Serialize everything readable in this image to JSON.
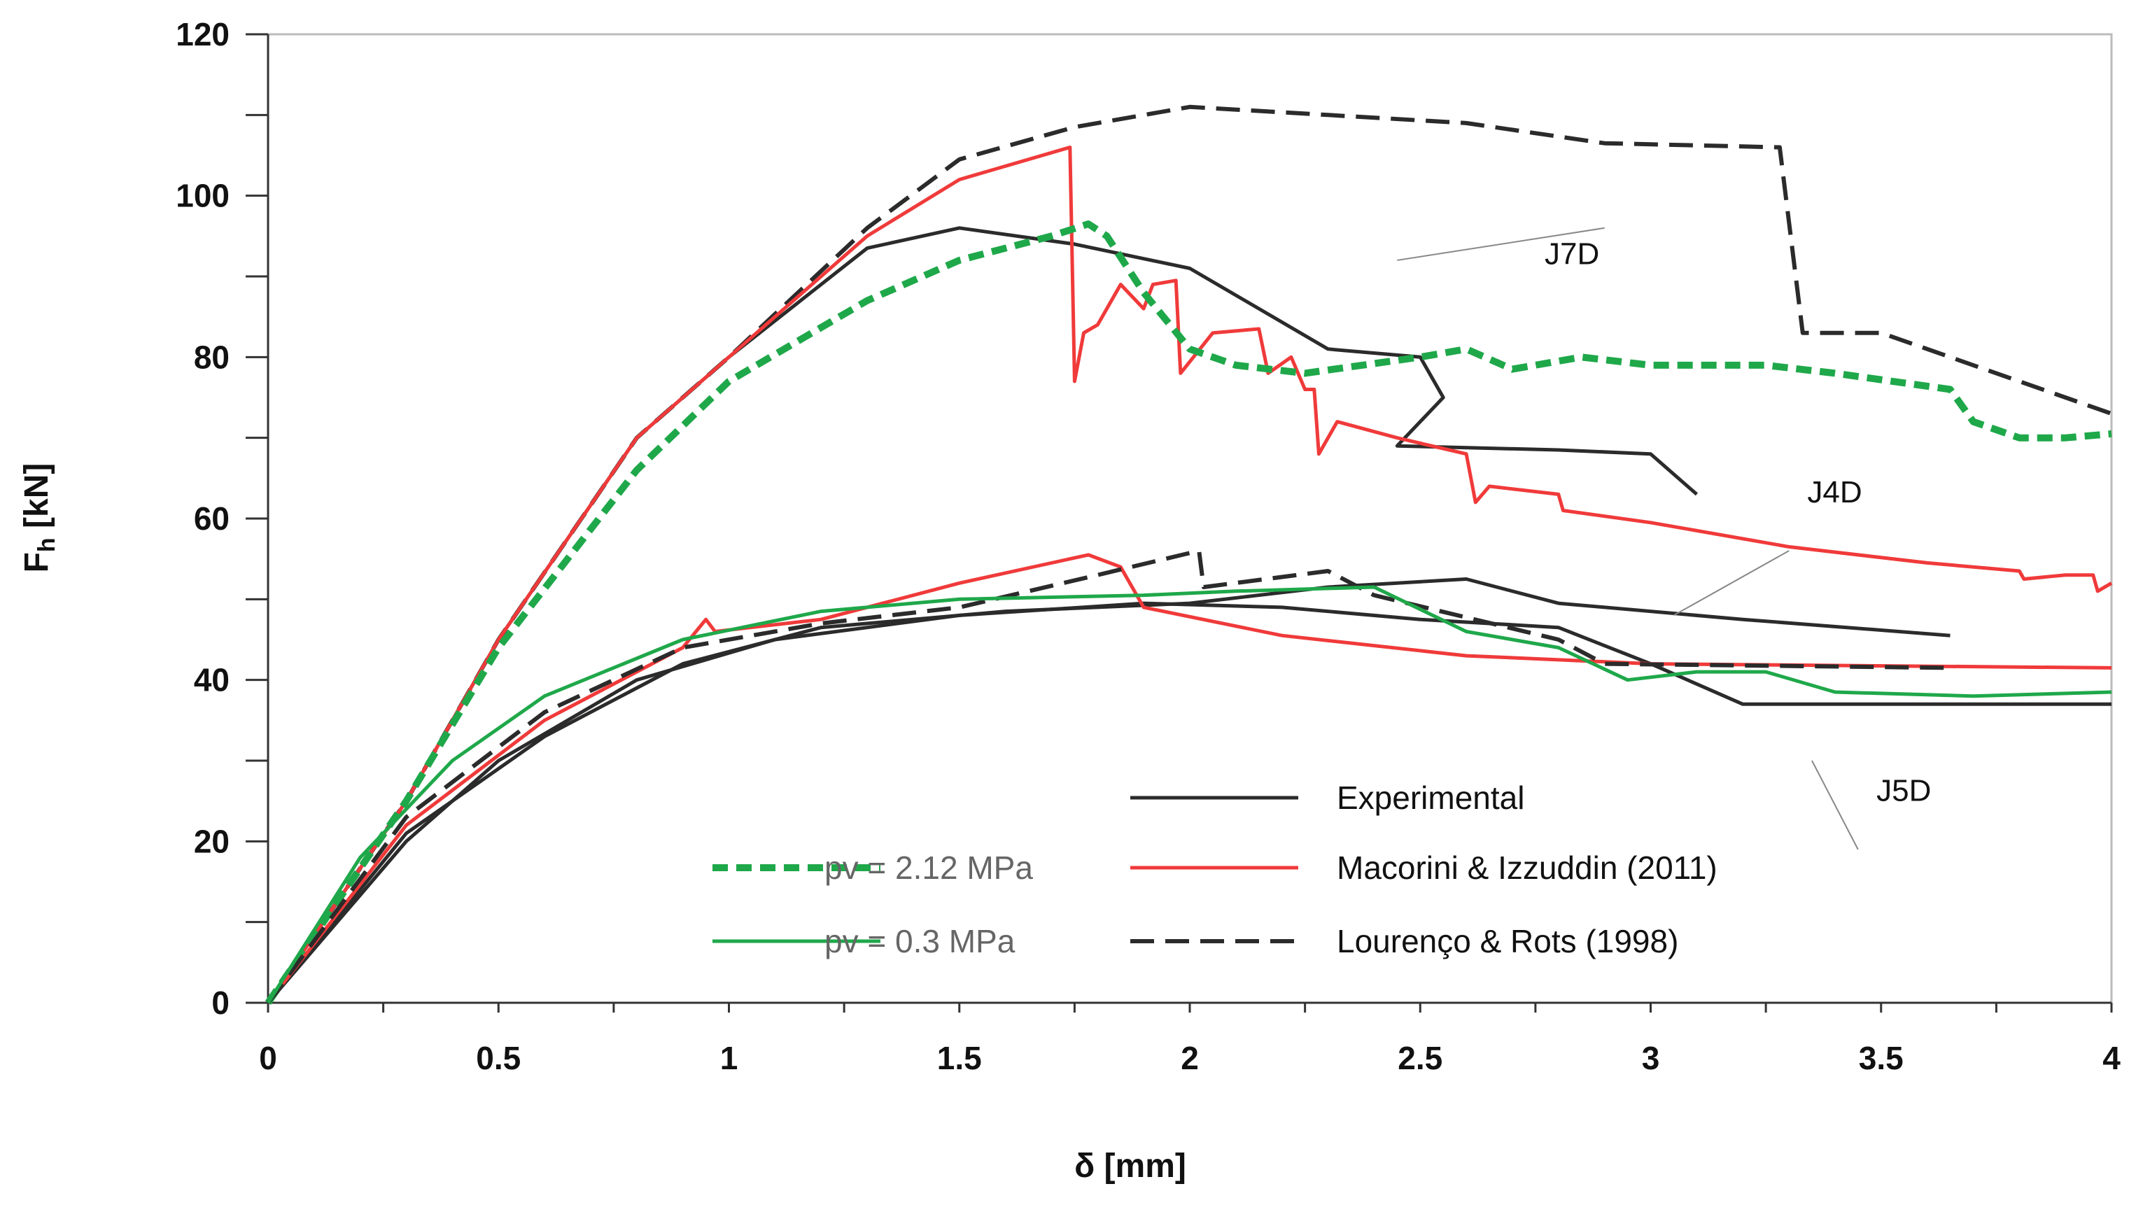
{
  "chart_data": {
    "type": "line",
    "xlabel": "δ [mm]",
    "ylabel_main": "F",
    "ylabel_sub": "h",
    "ylabel_unit": " [kN]",
    "xlim": [
      0,
      4
    ],
    "ylim": [
      0,
      120
    ],
    "xticks": [
      "0",
      "0.5",
      "1",
      "1.5",
      "2",
      "2.5",
      "3",
      "3.5",
      "4"
    ],
    "xtick_values": [
      0,
      0.5,
      1,
      1.5,
      2,
      2.5,
      3,
      3.5,
      4
    ],
    "yticks": [
      "0",
      "20",
      "40",
      "60",
      "80",
      "100",
      "120"
    ],
    "ytick_values": [
      0,
      20,
      40,
      60,
      80,
      100,
      120
    ],
    "grid": false,
    "annotations": [
      {
        "text": "J7D",
        "at": [
          2.45,
          92
        ],
        "pos": [
          2.4,
          92
        ]
      },
      {
        "text": "J4D",
        "at": [
          3.05,
          48
        ],
        "pos": [
          3.3,
          62
        ]
      },
      {
        "text": "J5D",
        "at": [
          3.35,
          30
        ],
        "pos": [
          3.45,
          25
        ]
      }
    ],
    "legend": {
      "placement": "bottom-center",
      "entries": [
        {
          "label": "Experimental",
          "style": "solid",
          "color": "#2b2b2b"
        },
        {
          "label": "Macorini & Izzuddin (2011)",
          "style": "solid",
          "color": "#f03a3a"
        },
        {
          "label": "Lourenço & Rots (1998)",
          "style": "dashed",
          "color": "#2b2b2b"
        },
        {
          "label": "pv = 2.12 MPa",
          "style": "dotted-thick",
          "color": "#1fa84a"
        },
        {
          "label": "pv = 0.3 MPa",
          "style": "solid",
          "color": "#1fa84a"
        }
      ]
    },
    "series": [
      {
        "name": "J7D Experimental",
        "color": "#2b2b2b",
        "style": "solid",
        "points": [
          [
            0,
            0
          ],
          [
            0.3,
            25
          ],
          [
            0.5,
            45
          ],
          [
            0.8,
            70
          ],
          [
            1,
            80
          ],
          [
            1.3,
            93.5
          ],
          [
            1.5,
            96
          ],
          [
            1.75,
            94
          ],
          [
            2,
            91
          ],
          [
            2.3,
            81
          ],
          [
            2.5,
            80
          ],
          [
            2.55,
            75
          ],
          [
            2.45,
            69
          ],
          [
            2.8,
            68.5
          ],
          [
            3,
            68
          ],
          [
            3.1,
            63
          ]
        ]
      },
      {
        "name": "J7D Lourenço & Rots (1998)",
        "color": "#2b2b2b",
        "style": "dashed",
        "points": [
          [
            0,
            0
          ],
          [
            0.3,
            25
          ],
          [
            0.5,
            45
          ],
          [
            0.8,
            70
          ],
          [
            1,
            80
          ],
          [
            1.3,
            96
          ],
          [
            1.5,
            104.5
          ],
          [
            1.75,
            108.5
          ],
          [
            2,
            111
          ],
          [
            2.3,
            110
          ],
          [
            2.6,
            109
          ],
          [
            2.9,
            106.5
          ],
          [
            3.28,
            106
          ],
          [
            3.33,
            83
          ],
          [
            3.5,
            83
          ],
          [
            3.7,
            79
          ],
          [
            4,
            73
          ]
        ]
      },
      {
        "name": "J7D Macorini & Izzuddin (2011)",
        "color": "#f03a3a",
        "style": "solid",
        "points": [
          [
            0,
            0
          ],
          [
            0.3,
            25
          ],
          [
            0.5,
            45
          ],
          [
            0.8,
            70
          ],
          [
            1,
            80
          ],
          [
            1.3,
            95
          ],
          [
            1.5,
            102
          ],
          [
            1.74,
            106
          ],
          [
            1.75,
            77
          ],
          [
            1.77,
            83
          ],
          [
            1.8,
            84
          ],
          [
            1.85,
            89
          ],
          [
            1.9,
            86
          ],
          [
            1.92,
            89
          ],
          [
            1.97,
            89.5
          ],
          [
            1.98,
            78
          ],
          [
            2.05,
            83
          ],
          [
            2.15,
            83.5
          ],
          [
            2.17,
            78
          ],
          [
            2.22,
            80
          ],
          [
            2.25,
            76
          ],
          [
            2.27,
            76
          ],
          [
            2.28,
            68
          ],
          [
            2.32,
            72
          ],
          [
            2.45,
            70
          ],
          [
            2.6,
            68
          ],
          [
            2.62,
            62
          ],
          [
            2.65,
            64
          ],
          [
            2.8,
            63
          ],
          [
            2.81,
            61
          ],
          [
            3,
            59.5
          ],
          [
            3.3,
            56.5
          ],
          [
            3.6,
            54.5
          ],
          [
            3.8,
            53.5
          ],
          [
            3.81,
            52.5
          ],
          [
            3.9,
            53
          ],
          [
            3.96,
            53
          ],
          [
            3.97,
            51
          ],
          [
            4,
            52
          ]
        ]
      },
      {
        "name": "J7D pv = 2.12 MPa",
        "color": "#1fa84a",
        "style": "dotted-thick",
        "points": [
          [
            0,
            0
          ],
          [
            0.3,
            25
          ],
          [
            0.5,
            44
          ],
          [
            0.8,
            66
          ],
          [
            1,
            77
          ],
          [
            1.3,
            87
          ],
          [
            1.5,
            92
          ],
          [
            1.7,
            95
          ],
          [
            1.78,
            96.5
          ],
          [
            1.82,
            95
          ],
          [
            1.9,
            88
          ],
          [
            2,
            81
          ],
          [
            2.1,
            79
          ],
          [
            2.25,
            78
          ],
          [
            2.5,
            80
          ],
          [
            2.6,
            81
          ],
          [
            2.7,
            78.5
          ],
          [
            2.85,
            80
          ],
          [
            3,
            79
          ],
          [
            3.25,
            79
          ],
          [
            3.4,
            78
          ],
          [
            3.65,
            76
          ],
          [
            3.7,
            72
          ],
          [
            3.8,
            70
          ],
          [
            3.9,
            70
          ],
          [
            4,
            70.5
          ]
        ]
      },
      {
        "name": "J4D Experimental",
        "color": "#2b2b2b",
        "style": "solid",
        "points": [
          [
            0,
            0
          ],
          [
            0.3,
            21
          ],
          [
            0.6,
            33
          ],
          [
            0.9,
            42
          ],
          [
            1.2,
            46.5
          ],
          [
            1.6,
            48.5
          ],
          [
            2,
            49.5
          ],
          [
            2.3,
            51.5
          ],
          [
            2.6,
            52.5
          ],
          [
            2.8,
            49.5
          ],
          [
            3.2,
            47.5
          ],
          [
            3.65,
            45.5
          ]
        ]
      },
      {
        "name": "J5D Experimental",
        "color": "#2b2b2b",
        "style": "solid",
        "points": [
          [
            0,
            0
          ],
          [
            0.3,
            20
          ],
          [
            0.5,
            30
          ],
          [
            0.8,
            40
          ],
          [
            1.1,
            45
          ],
          [
            1.5,
            48
          ],
          [
            1.9,
            49.5
          ],
          [
            2.2,
            49
          ],
          [
            2.5,
            47.5
          ],
          [
            2.8,
            46.5
          ],
          [
            3,
            42
          ],
          [
            3.2,
            37
          ],
          [
            4,
            37
          ]
        ]
      },
      {
        "name": "Lower Macorini & Izzuddin (2011)",
        "color": "#f03a3a",
        "style": "solid",
        "points": [
          [
            0,
            0
          ],
          [
            0.3,
            22
          ],
          [
            0.6,
            35
          ],
          [
            0.9,
            44
          ],
          [
            0.95,
            47.5
          ],
          [
            0.97,
            46
          ],
          [
            1.2,
            47.5
          ],
          [
            1.5,
            52
          ],
          [
            1.78,
            55.5
          ],
          [
            1.85,
            54
          ],
          [
            1.9,
            49
          ],
          [
            2.2,
            45.5
          ],
          [
            2.6,
            43
          ],
          [
            3,
            42
          ],
          [
            4,
            41.5
          ]
        ]
      },
      {
        "name": "Lower Lourenço & Rots (1998)",
        "color": "#2b2b2b",
        "style": "dashed",
        "points": [
          [
            0,
            0
          ],
          [
            0.3,
            23
          ],
          [
            0.6,
            36
          ],
          [
            0.9,
            44
          ],
          [
            1.2,
            47
          ],
          [
            1.5,
            49
          ],
          [
            1.8,
            53
          ],
          [
            2.02,
            56
          ],
          [
            2.03,
            51.5
          ],
          [
            2.3,
            53.5
          ],
          [
            2.4,
            50.5
          ],
          [
            2.8,
            45
          ],
          [
            2.9,
            42
          ],
          [
            3.65,
            41.5
          ]
        ]
      },
      {
        "name": "Lower pv = 0.3 MPa",
        "color": "#1fa84a",
        "style": "solid",
        "points": [
          [
            0,
            0
          ],
          [
            0.2,
            18
          ],
          [
            0.4,
            30
          ],
          [
            0.6,
            38
          ],
          [
            0.9,
            45
          ],
          [
            1.2,
            48.5
          ],
          [
            1.5,
            50
          ],
          [
            1.9,
            50.5
          ],
          [
            2.1,
            51
          ],
          [
            2.4,
            51.5
          ],
          [
            2.6,
            46
          ],
          [
            2.8,
            44
          ],
          [
            2.95,
            40
          ],
          [
            3.1,
            41
          ],
          [
            3.25,
            41
          ],
          [
            3.4,
            38.5
          ],
          [
            3.7,
            38
          ],
          [
            4,
            38.5
          ]
        ]
      }
    ]
  }
}
